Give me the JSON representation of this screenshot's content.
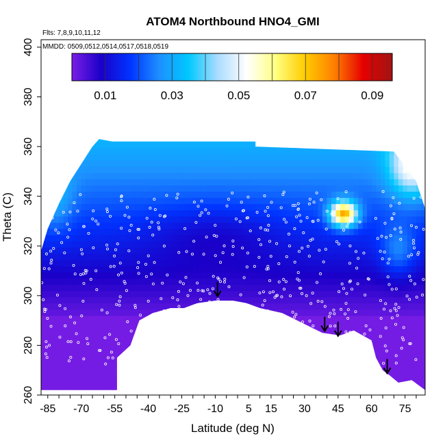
{
  "chart_data": {
    "type": "heatmap",
    "title": "ATOM4 Northbound HNO4_GMI",
    "subtitle_flights": "Flts: 7,8,9,10,11,12",
    "subtitle_dates": "MMDD: 0509,0512,0514,0517,0518,0519",
    "xlabel": "Latitude (deg N)",
    "ylabel": "Theta (C)",
    "xlim": [
      -88,
      84
    ],
    "ylim": [
      260,
      403
    ],
    "x_ticks": [
      -85,
      -70,
      -55,
      -40,
      -25,
      -10,
      5,
      15,
      30,
      45,
      60,
      75
    ],
    "y_ticks": [
      260,
      280,
      300,
      320,
      340,
      360,
      380,
      400
    ],
    "colorbar": {
      "min": 0,
      "max": 0.096,
      "tick_values": [
        0.01,
        0.03,
        0.05,
        0.07,
        0.09
      ],
      "tick_labels": [
        "0.01",
        "0.03",
        "0.05",
        "0.07",
        "0.09"
      ],
      "colors": [
        "#7a1ee6",
        "#1a00c8",
        "#0033ff",
        "#1e90ff",
        "#00c8ff",
        "#aadcff",
        "#ffffff",
        "#ffff80",
        "#ffcc00",
        "#ff8000",
        "#e60000",
        "#a01414"
      ]
    },
    "terrain_boundary": [
      [
        -88,
        262
      ],
      [
        -54,
        262
      ],
      [
        -54,
        275
      ],
      [
        -48,
        280
      ],
      [
        -44,
        290
      ],
      [
        -38,
        293
      ],
      [
        -30,
        295
      ],
      [
        -24,
        295
      ],
      [
        -18,
        297
      ],
      [
        -10,
        298
      ],
      [
        -2,
        298
      ],
      [
        4,
        297
      ],
      [
        10,
        295
      ],
      [
        20,
        293
      ],
      [
        38,
        285
      ],
      [
        46,
        284
      ],
      [
        52,
        286
      ],
      [
        60,
        282
      ],
      [
        62,
        275
      ],
      [
        65,
        270
      ],
      [
        68,
        268
      ],
      [
        72,
        265
      ],
      [
        78,
        266
      ],
      [
        84,
        262
      ]
    ],
    "field_top_boundary": [
      [
        -88,
        318
      ],
      [
        -85,
        327
      ],
      [
        -80,
        337
      ],
      [
        -75,
        346
      ],
      [
        -70,
        353
      ],
      [
        -65,
        360
      ],
      [
        -62,
        363
      ],
      [
        -56,
        362
      ],
      [
        8,
        362
      ],
      [
        8,
        360
      ],
      [
        70,
        358
      ],
      [
        80,
        346
      ],
      [
        84,
        335
      ]
    ],
    "enhancement_region": {
      "lat_range": [
        38,
        57
      ],
      "theta_range": [
        324,
        342
      ],
      "peak_value": 0.085
    },
    "arrows": [
      {
        "lat": -9,
        "theta": 300
      },
      {
        "lat": 39,
        "theta": 286
      },
      {
        "lat": 45,
        "theta": 284
      },
      {
        "lat": 67,
        "theta": 269
      }
    ]
  }
}
